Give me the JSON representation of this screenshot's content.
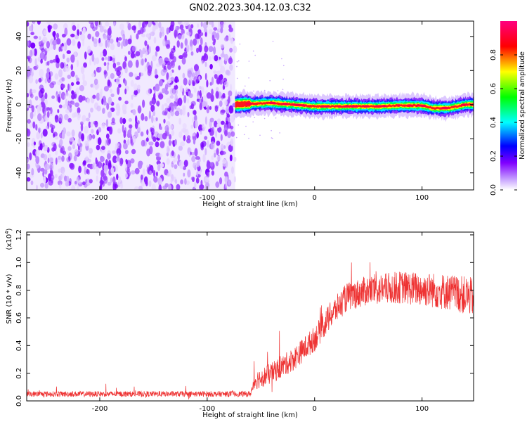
{
  "title": "GN02.2023.304.12.03.C32",
  "chart_data": [
    {
      "type": "heatmap",
      "xlabel": "Height of straight line (km)",
      "ylabel": "Frequency (Hz)",
      "xlim": [
        -268,
        148
      ],
      "ylim": [
        -50,
        49
      ],
      "xticks": [
        -200,
        -100,
        0,
        100
      ],
      "xtick_labels": [
        "-200",
        "-100",
        "0",
        "100"
      ],
      "yticks": [
        -40,
        -20,
        0,
        20,
        40
      ],
      "ytick_labels": [
        "-40",
        "-20",
        "0",
        "20",
        "40"
      ],
      "noise_region_x": [
        -268,
        -74
      ],
      "signal_band": {
        "x_start": -74,
        "x_end": 148,
        "center_freq": 0,
        "half_width": 2,
        "profile": [
          {
            "x": -74,
            "f": 0
          },
          {
            "x": -60,
            "f": 0.5
          },
          {
            "x": -40,
            "f": 1
          },
          {
            "x": -20,
            "f": 0
          },
          {
            "x": 0,
            "f": -1
          },
          {
            "x": 20,
            "f": -1
          },
          {
            "x": 40,
            "f": -1
          },
          {
            "x": 60,
            "f": -1
          },
          {
            "x": 80,
            "f": -0.5
          },
          {
            "x": 100,
            "f": -0.5
          },
          {
            "x": 110,
            "f": -2
          },
          {
            "x": 125,
            "f": -2
          },
          {
            "x": 140,
            "f": 0
          },
          {
            "x": 148,
            "f": 0
          }
        ]
      },
      "colorbar": {
        "label": "Normalized spectral amplitude",
        "range": [
          0,
          1
        ],
        "ticks": [
          0.0,
          0.2,
          0.4,
          0.6,
          0.8
        ],
        "tick_labels": [
          "0.0",
          "0.2",
          "0.4",
          "0.6",
          "0.8"
        ],
        "colormap": [
          "#ffffff",
          "#8000ff",
          "#0000ff",
          "#00ffff",
          "#00ff00",
          "#ffff00",
          "#ff0000",
          "#ff0080"
        ]
      }
    },
    {
      "type": "line",
      "xlabel": "Height of straight line (km)",
      "ylabel": "SNR (10 * v/v)",
      "yscale_label": "(x10",
      "yscale_exp": "4",
      "yscale_close": ")",
      "xlim": [
        -268,
        148
      ],
      "ylim": [
        0,
        1.22
      ],
      "xticks": [
        -200,
        -100,
        0,
        100
      ],
      "xtick_labels": [
        "-200",
        "-100",
        "0",
        "100"
      ],
      "yticks": [
        0.0,
        0.2,
        0.4,
        0.6,
        0.8,
        1.0,
        1.2
      ],
      "ytick_labels": [
        "0.0",
        "0.2",
        "0.4",
        "0.6",
        "0.8",
        "1.0",
        "1.2"
      ],
      "color": "#ee3333",
      "trend": [
        {
          "x": -268,
          "y": 0.05
        },
        {
          "x": -60,
          "y": 0.05
        },
        {
          "x": -55,
          "y": 0.15
        },
        {
          "x": -40,
          "y": 0.2
        },
        {
          "x": -20,
          "y": 0.3
        },
        {
          "x": 0,
          "y": 0.45
        },
        {
          "x": 15,
          "y": 0.62
        },
        {
          "x": 30,
          "y": 0.75
        },
        {
          "x": 50,
          "y": 0.8
        },
        {
          "x": 80,
          "y": 0.82
        },
        {
          "x": 110,
          "y": 0.8
        },
        {
          "x": 130,
          "y": 0.78
        },
        {
          "x": 148,
          "y": 0.75
        }
      ],
      "noise_amplitude": [
        {
          "x": -268,
          "a": 0.02
        },
        {
          "x": -60,
          "a": 0.02
        },
        {
          "x": -55,
          "a": 0.07
        },
        {
          "x": 20,
          "a": 0.1
        },
        {
          "x": 148,
          "a": 0.14
        }
      ]
    }
  ]
}
